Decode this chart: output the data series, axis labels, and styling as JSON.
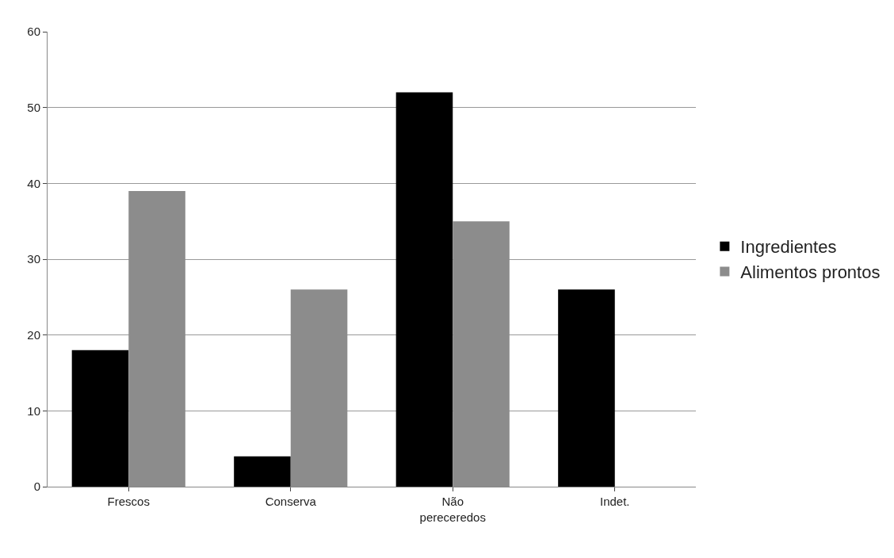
{
  "chart_data": {
    "type": "bar",
    "categories": [
      "Frescos",
      "Conserva",
      "Não pereceredos",
      "Indet."
    ],
    "series": [
      {
        "name": "Ingredientes",
        "color": "#000000",
        "values": [
          18,
          4,
          52,
          26
        ]
      },
      {
        "name": "Alimentos prontos",
        "color": "#8c8c8c",
        "values": [
          39,
          26,
          35,
          null
        ]
      }
    ],
    "ylim": [
      0,
      60
    ],
    "yticks": [
      0,
      10,
      20,
      30,
      40,
      50,
      60
    ],
    "grid": "y",
    "legend": "right"
  }
}
